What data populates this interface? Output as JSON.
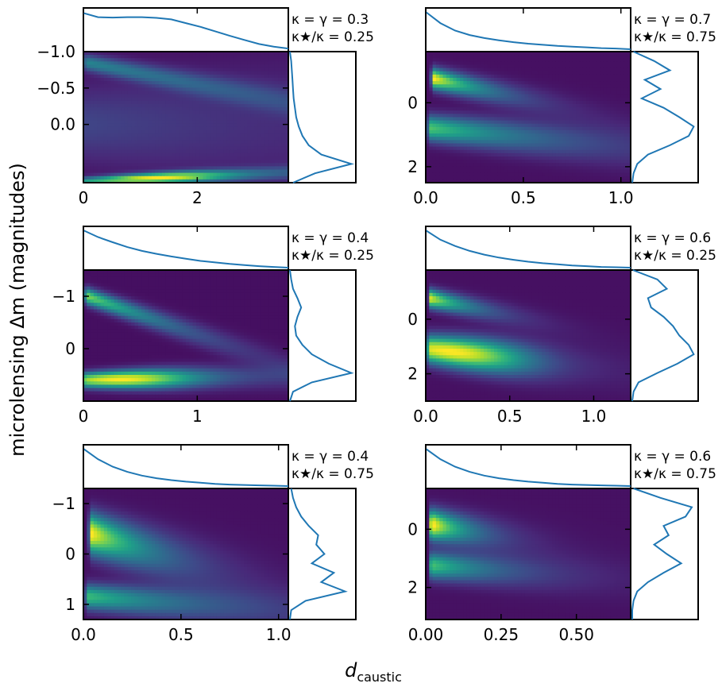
{
  "figure": {
    "ylabel": "microlensing Δm (magnitudes)",
    "xlabel_main": "d",
    "xlabel_sub": "caustic"
  },
  "chart_data": [
    {
      "type": "heatmap",
      "name": "panel-k03-s025",
      "annotation": [
        "κ = γ = 0.3",
        "κ★/κ = 0.25"
      ],
      "xlim": [
        0,
        3.6
      ],
      "ylim": [
        0.8,
        -1.0
      ],
      "xticks": [
        0,
        2
      ],
      "xtick_labels": [
        "0",
        "2"
      ],
      "yticks": [
        -1.0,
        -0.5,
        0.0
      ],
      "ytick_labels": [
        "−1.0",
        "−0.5",
        "0.0"
      ],
      "branches": [
        {
          "x0": 0.05,
          "y0": -0.85,
          "slope": 0.55,
          "amp": 0.35,
          "decay": 0.9,
          "width": 0.1
        },
        {
          "x0": 0.02,
          "y0": 0.78,
          "slope": -0.12,
          "amp": 0.85,
          "decay": 4.0,
          "width": 0.05,
          "peak": 1.3
        },
        {
          "x0": 0.0,
          "y0": 0.0,
          "slope": 0.0,
          "amp": 0.12,
          "decay": 1.2,
          "width": 0.45
        }
      ],
      "top_marginal": [
        0.97,
        0.86,
        0.85,
        0.86,
        0.86,
        0.84,
        0.8,
        0.7,
        0.6,
        0.48,
        0.36,
        0.25,
        0.14,
        0.07,
        0.02
      ],
      "right_marginal": [
        0.0,
        0.02,
        0.03,
        0.04,
        0.05,
        0.06,
        0.08,
        0.1,
        0.14,
        0.2,
        0.3,
        0.5,
        0.98,
        0.4,
        0.05
      ]
    },
    {
      "type": "heatmap",
      "name": "panel-k07-s075",
      "annotation": [
        "κ = γ = 0.7",
        "κ★/κ = 0.75"
      ],
      "xlim": [
        0,
        1.05
      ],
      "ylim": [
        2.5,
        -1.6
      ],
      "xticks": [
        0.0,
        0.5,
        1.0
      ],
      "xtick_labels": [
        "0.0",
        "0.5",
        "1.0"
      ],
      "yticks": [
        0,
        2
      ],
      "ytick_labels": [
        "0",
        "2"
      ],
      "branches": [
        {
          "x0": 0.04,
          "y0": -0.75,
          "slope": 1.4,
          "amp": 1.0,
          "decay": 0.22,
          "width": 0.28
        },
        {
          "x0": 0.02,
          "y0": 0.8,
          "slope": 0.6,
          "amp": 0.65,
          "decay": 0.5,
          "width": 0.35
        }
      ],
      "top_marginal": [
        1.0,
        0.7,
        0.5,
        0.38,
        0.3,
        0.24,
        0.19,
        0.15,
        0.12,
        0.09,
        0.07,
        0.05,
        0.03,
        0.02,
        0.0
      ],
      "right_marginal": [
        0.02,
        0.35,
        0.6,
        0.2,
        0.45,
        0.15,
        0.5,
        0.75,
        0.98,
        0.9,
        0.6,
        0.25,
        0.08,
        0.02,
        0.0
      ]
    },
    {
      "type": "heatmap",
      "name": "panel-k04-s025",
      "annotation": [
        "κ = γ = 0.4",
        "κ★/κ = 0.25"
      ],
      "xlim": [
        0,
        1.8
      ],
      "ylim": [
        1.0,
        -1.5
      ],
      "xticks": [
        0,
        1
      ],
      "xtick_labels": [
        "0",
        "1"
      ],
      "yticks": [
        -1,
        0
      ],
      "ytick_labels": [
        "−1",
        "0"
      ],
      "branches": [
        {
          "x0": 0.03,
          "y0": -1.0,
          "slope": 1.35,
          "amp": 0.85,
          "decay": 0.35,
          "width": 0.14
        },
        {
          "x0": 0.02,
          "y0": 0.6,
          "slope": -0.08,
          "amp": 1.0,
          "decay": 1.2,
          "width": 0.13,
          "peak": 0.35
        }
      ],
      "top_marginal": [
        1.0,
        0.82,
        0.68,
        0.55,
        0.45,
        0.37,
        0.3,
        0.24,
        0.18,
        0.14,
        0.1,
        0.07,
        0.04,
        0.02,
        0.0
      ],
      "right_marginal": [
        0.0,
        0.02,
        0.05,
        0.12,
        0.18,
        0.12,
        0.08,
        0.1,
        0.2,
        0.35,
        0.62,
        0.98,
        0.35,
        0.05,
        0.0
      ]
    },
    {
      "type": "heatmap",
      "name": "panel-k06-s025",
      "annotation": [
        "κ = γ = 0.6",
        "κ★/κ = 0.25"
      ],
      "xlim": [
        0,
        1.22
      ],
      "ylim": [
        3.0,
        -1.8
      ],
      "xticks": [
        0.0,
        0.5,
        1.0
      ],
      "xtick_labels": [
        "0.0",
        "0.5",
        "1.0"
      ],
      "yticks": [
        0,
        2
      ],
      "ytick_labels": [
        "0",
        "2"
      ],
      "branches": [
        {
          "x0": 0.03,
          "y0": -0.75,
          "slope": 1.6,
          "amp": 0.9,
          "decay": 0.18,
          "width": 0.3
        },
        {
          "x0": 0.02,
          "y0": 1.1,
          "slope": 0.85,
          "amp": 0.9,
          "decay": 0.45,
          "width": 0.45,
          "peak": 0.18
        }
      ],
      "top_marginal": [
        1.0,
        0.75,
        0.58,
        0.45,
        0.35,
        0.27,
        0.21,
        0.16,
        0.12,
        0.09,
        0.06,
        0.04,
        0.02,
        0.01,
        0.0
      ],
      "right_marginal": [
        0.01,
        0.4,
        0.55,
        0.25,
        0.3,
        0.5,
        0.65,
        0.75,
        0.9,
        0.98,
        0.72,
        0.4,
        0.1,
        0.02,
        0.0
      ]
    },
    {
      "type": "heatmap",
      "name": "panel-k04-s075",
      "annotation": [
        "κ = γ = 0.4",
        "κ★/κ = 0.75"
      ],
      "xlim": [
        0,
        1.05
      ],
      "ylim": [
        1.3,
        -1.3
      ],
      "xticks": [
        0.0,
        0.5,
        1.0
      ],
      "xtick_labels": [
        "0.0",
        "0.5",
        "1.0"
      ],
      "yticks": [
        -1,
        0,
        1
      ],
      "ytick_labels": [
        "−1",
        "0",
        "1"
      ],
      "branches": [
        {
          "x0": 0.04,
          "y0": -0.4,
          "slope": 1.2,
          "amp": 1.0,
          "decay": 0.25,
          "width": 0.35
        },
        {
          "x0": 0.02,
          "y0": 0.85,
          "slope": 0.3,
          "amp": 0.6,
          "decay": 0.5,
          "width": 0.22
        }
      ],
      "top_marginal": [
        1.0,
        0.72,
        0.52,
        0.38,
        0.28,
        0.21,
        0.16,
        0.12,
        0.09,
        0.06,
        0.04,
        0.03,
        0.02,
        0.01,
        0.0
      ],
      "right_marginal": [
        0.02,
        0.05,
        0.1,
        0.18,
        0.3,
        0.45,
        0.42,
        0.55,
        0.35,
        0.7,
        0.5,
        0.88,
        0.25,
        0.02,
        0.0
      ]
    },
    {
      "type": "heatmap",
      "name": "panel-k06-s075",
      "annotation": [
        "κ = γ = 0.6",
        "κ★/κ = 0.75"
      ],
      "xlim": [
        0,
        0.68
      ],
      "ylim": [
        3.1,
        -1.4
      ],
      "xticks": [
        0.0,
        0.25,
        0.5
      ],
      "xtick_labels": [
        "0.00",
        "0.25",
        "0.50"
      ],
      "yticks": [
        0,
        2
      ],
      "ytick_labels": [
        "0",
        "2"
      ],
      "branches": [
        {
          "x0": 0.02,
          "y0": -0.15,
          "slope": 1.2,
          "amp": 1.0,
          "decay": 0.16,
          "width": 0.45
        },
        {
          "x0": 0.02,
          "y0": 1.25,
          "slope": 0.5,
          "amp": 0.6,
          "decay": 0.3,
          "width": 0.4
        }
      ],
      "top_marginal": [
        1.0,
        0.72,
        0.52,
        0.38,
        0.28,
        0.21,
        0.16,
        0.12,
        0.09,
        0.06,
        0.04,
        0.03,
        0.02,
        0.01,
        0.0
      ],
      "right_marginal": [
        0.02,
        0.45,
        0.95,
        0.85,
        0.5,
        0.58,
        0.35,
        0.55,
        0.78,
        0.5,
        0.25,
        0.08,
        0.02,
        0.0,
        0.0
      ]
    }
  ]
}
